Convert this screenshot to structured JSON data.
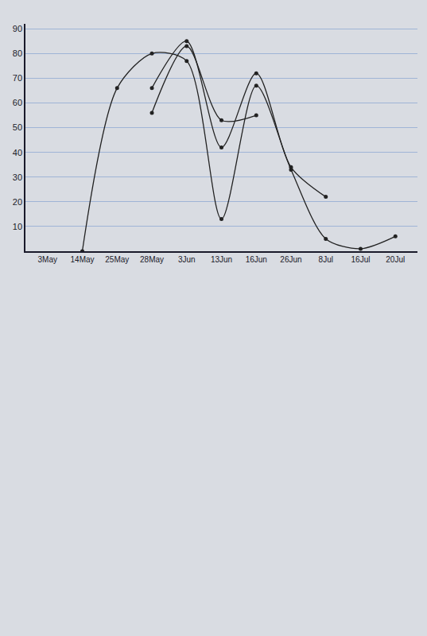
{
  "chart_data": {
    "type": "line",
    "categories": [
      "3May",
      "14May",
      "25May",
      "28May",
      "3Jun",
      "13Jun",
      "16Jun",
      "26Jun",
      "8Jul",
      "16Jul",
      "20Jul"
    ],
    "series": [
      {
        "color": "#222222",
        "marker": "circle",
        "values": [
          null,
          0,
          66,
          80,
          77,
          13,
          67,
          33,
          5,
          1,
          6
        ]
      },
      {
        "color": "#222222",
        "marker": "circle",
        "values": [
          null,
          null,
          null,
          66,
          85,
          42,
          72,
          34,
          22,
          null,
          null
        ]
      },
      {
        "color": "#222222",
        "marker": "circle",
        "values": [
          null,
          null,
          null,
          56,
          83,
          53,
          55,
          null,
          null,
          null,
          null
        ]
      }
    ],
    "ylim": [
      0,
      92
    ],
    "yticks": [
      10,
      20,
      30,
      40,
      50,
      60,
      70,
      80,
      90
    ],
    "grid": true
  }
}
